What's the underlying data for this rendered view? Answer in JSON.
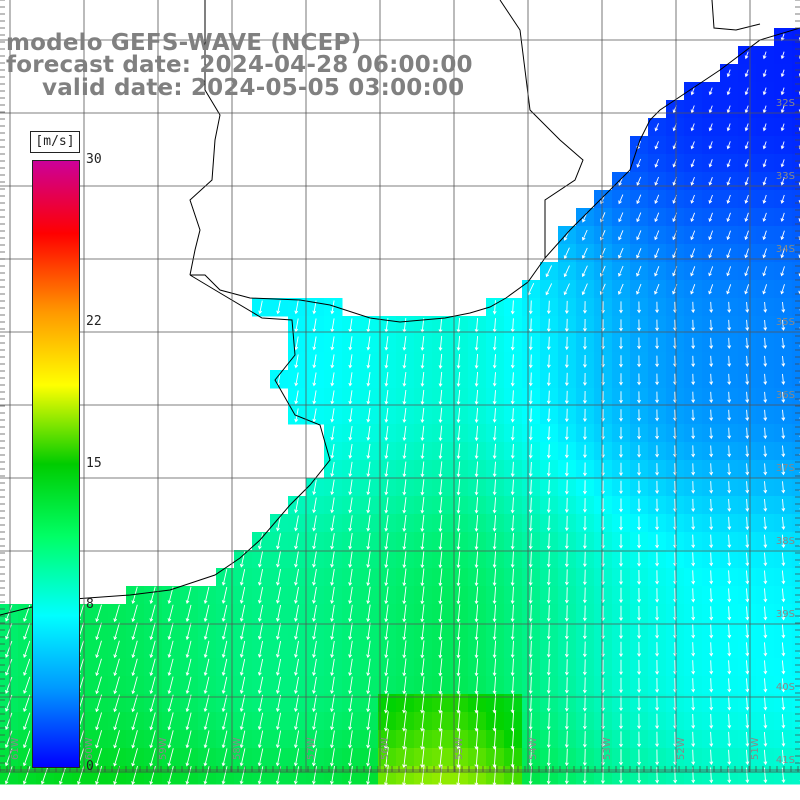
{
  "titles": {
    "line1": "modelo GEFS-WAVE (NCEP)",
    "line2": "forecast date: 2024-04-28 06:00:00",
    "line3": "valid date: 2024-05-05 03:00:00"
  },
  "colorbar": {
    "units": "[m/s]",
    "ticks": [
      "30",
      "22",
      "15",
      "8",
      "0"
    ],
    "tick_values": [
      30,
      22,
      15,
      8,
      0
    ],
    "range": [
      0,
      30
    ],
    "colors": [
      "#0000ff",
      "#0099ff",
      "#00ffff",
      "#00ff66",
      "#00cc00",
      "#ffff00",
      "#ff9900",
      "#ff0000",
      "#cc0099"
    ]
  },
  "map": {
    "lat_labels": [
      "32S",
      "33S",
      "34S",
      "35S",
      "36S",
      "37S",
      "38S",
      "39S",
      "40S",
      "41S"
    ],
    "lon_labels": [
      "61W",
      "60W",
      "59W",
      "58W",
      "57W",
      "56W",
      "55W",
      "54W",
      "53W",
      "52W",
      "51W"
    ],
    "land_color": "#ffffff",
    "field": "wind speed and direction"
  }
}
